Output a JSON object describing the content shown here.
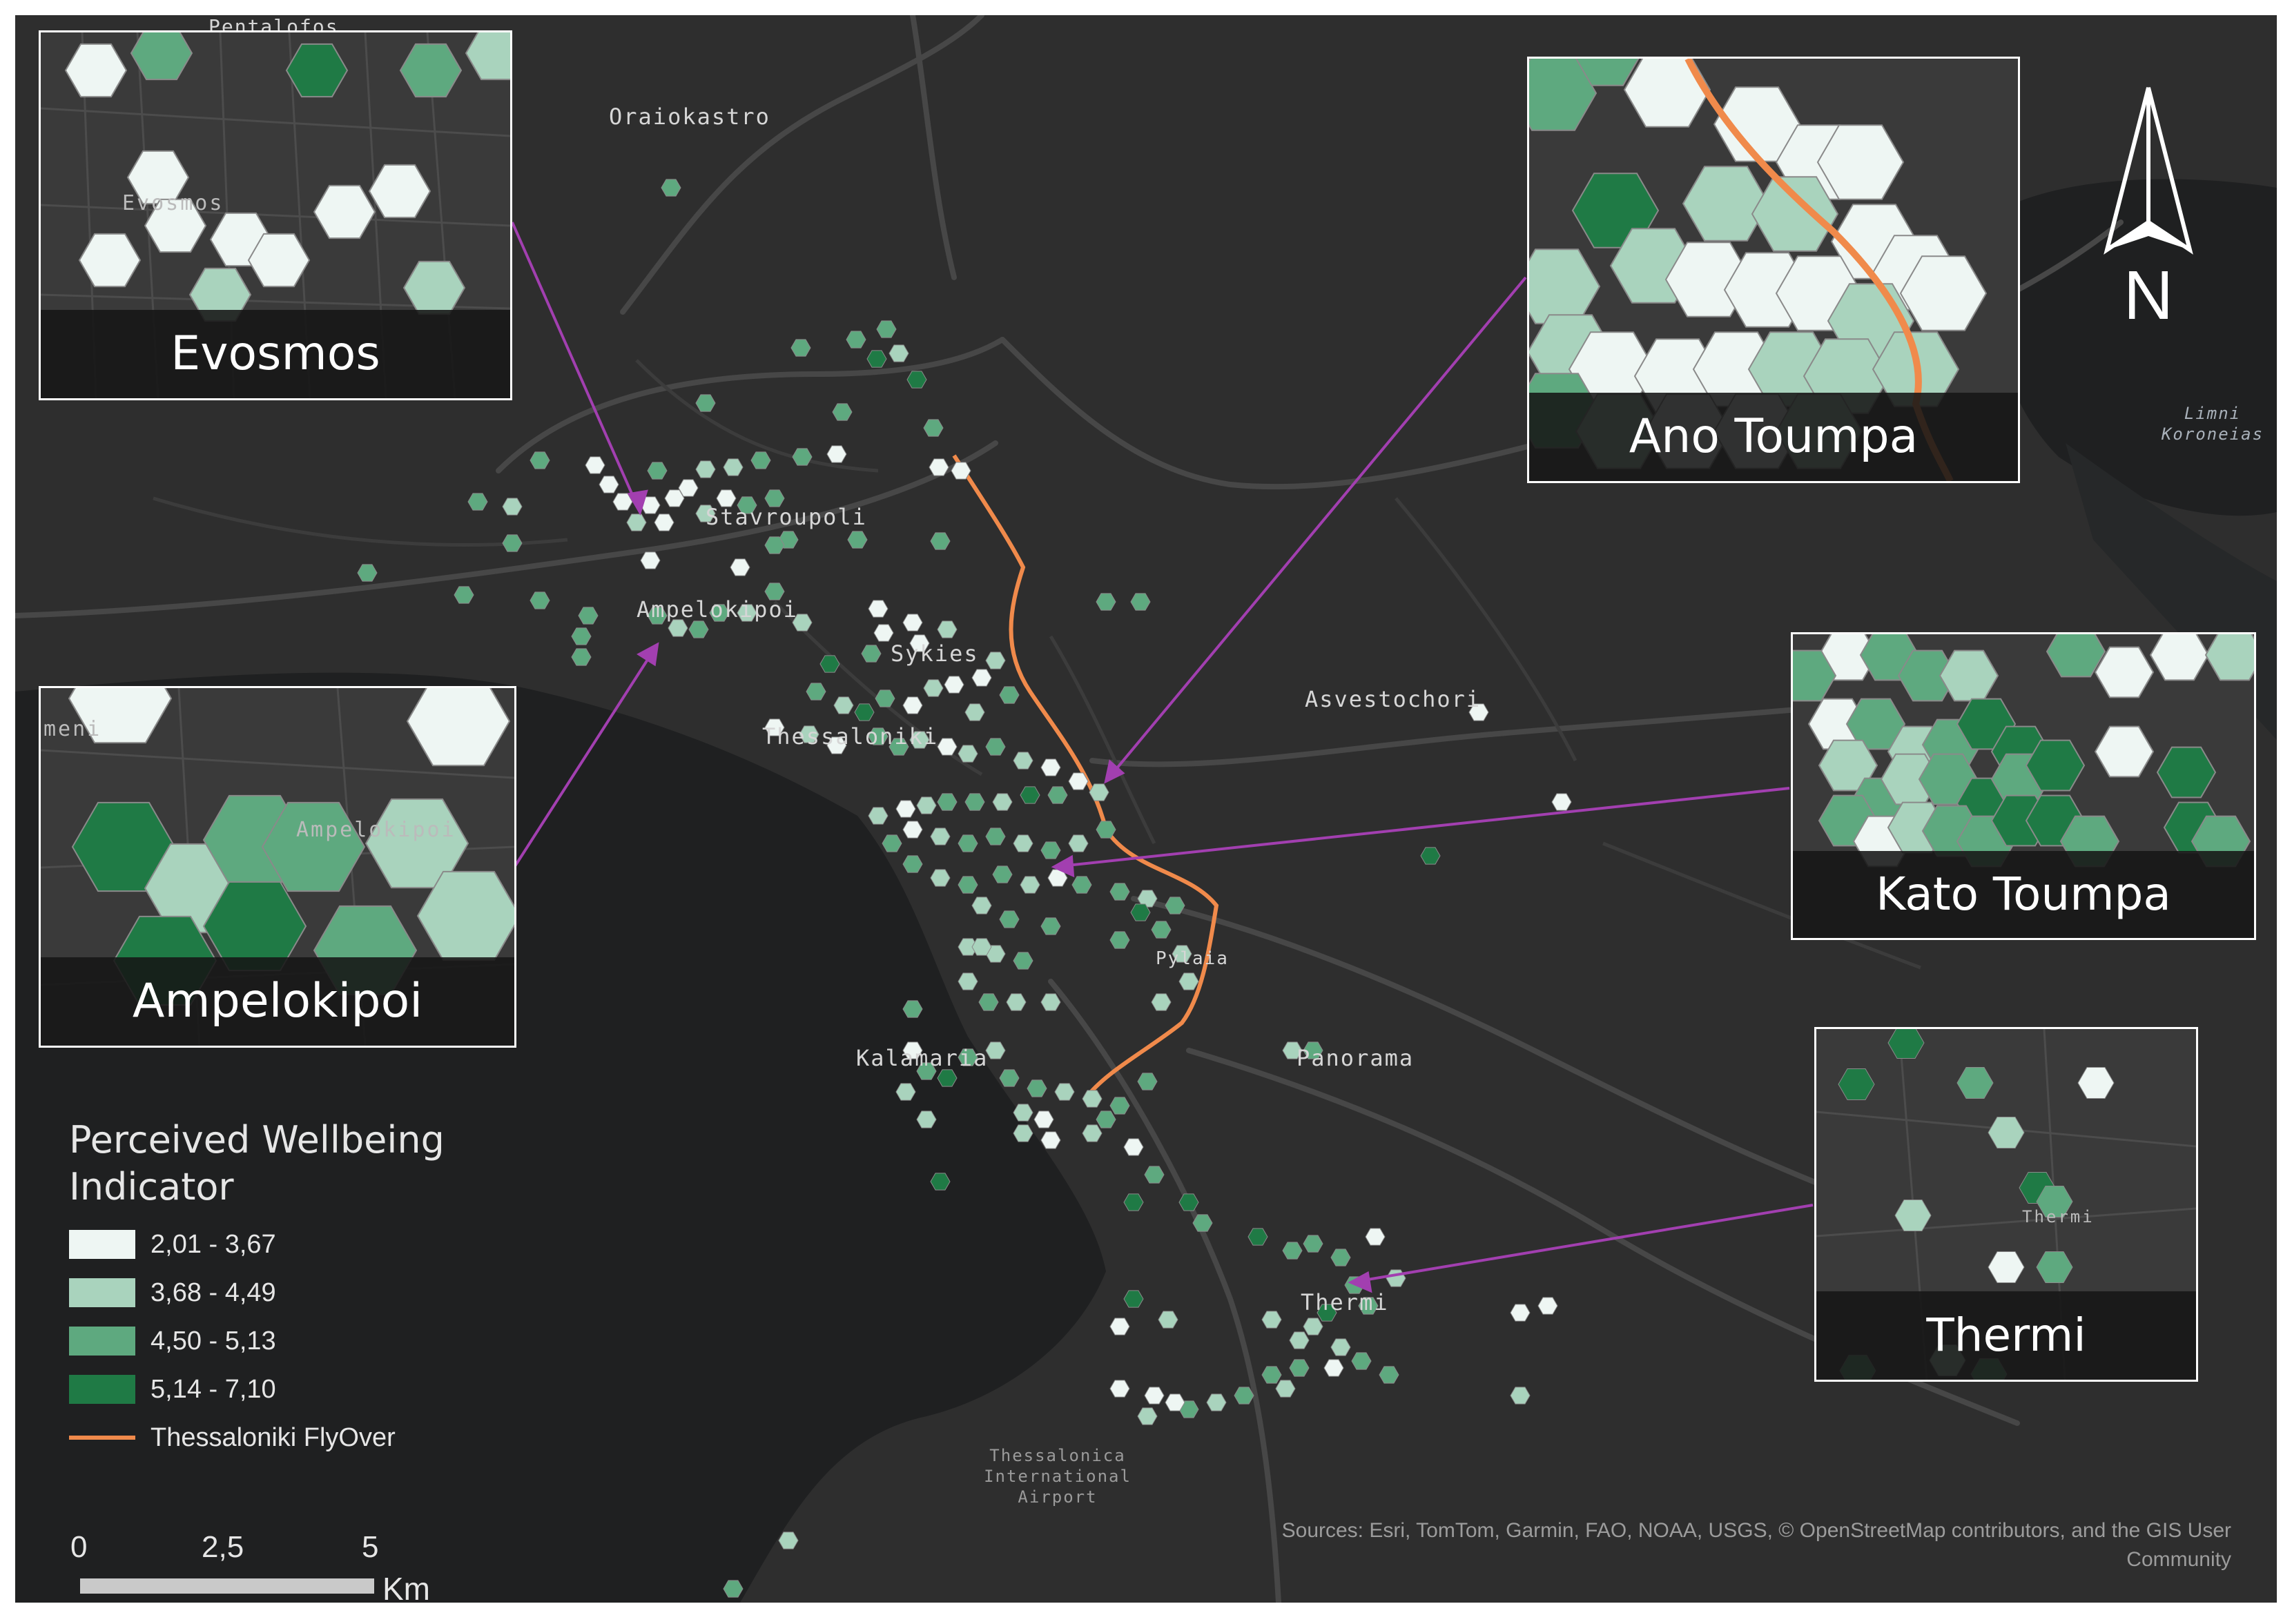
{
  "map": {
    "place_labels": {
      "pentalofos": "Pentalofos",
      "oraiokastro": "Oraiokastro",
      "stavroupoli": "Stavroupoli",
      "ampelokipoi": "Ampelokipoi",
      "sykies": "Sykies",
      "thessaloniki": "Thessaloniki",
      "asvestochori": "Asvestochori",
      "kalamaria": "Kalamaria",
      "panorama": "Panorama",
      "thermi": "Thermi",
      "pylaia": "Pylaia",
      "airport": "Thessalonica International Airport",
      "lake": "Limni Koroneias"
    },
    "north_label": "N"
  },
  "insets": [
    {
      "key": "evosmos",
      "title": "Evosmos"
    },
    {
      "key": "ano_toumpa",
      "title": "Ano Toumpa"
    },
    {
      "key": "ampelokipoi",
      "title": "Ampelokipoi"
    },
    {
      "key": "kato_toumpa",
      "title": "Kato Toumpa"
    },
    {
      "key": "thermi",
      "title": "Thermi"
    }
  ],
  "inset_ghost_labels": {
    "evosmos": "Evosmos",
    "ampelokipoi": "Ampelokipoi",
    "thermi": "Thermi",
    "ampelokipoi_left": "meni"
  },
  "legend": {
    "title": "Perceived Wellbeing Indicator",
    "classes": [
      {
        "label": "2,01 - 3,67",
        "color": "#eef6f3"
      },
      {
        "label": "3,68 - 4,49",
        "color": "#a9d3bd"
      },
      {
        "label": "4,50 - 5,13",
        "color": "#5ea97f"
      },
      {
        "label": "5,14 - 7,10",
        "color": "#1f7a45"
      }
    ],
    "route_label": "Thessaloniki FlyOver",
    "route_color": "#f08a4b"
  },
  "scale": {
    "ticks": [
      "0",
      "2,5",
      "5"
    ],
    "unit": "Km"
  },
  "attribution": "Sources: Esri, TomTom, Garmin, FAO, NOAA, USGS, © OpenStreetMap contributors, and the GIS User Community",
  "colors": {
    "land": "#2e2e2e",
    "water": "#1f2021",
    "roads": "#474747",
    "callout_arrow": "#a23fb0"
  }
}
